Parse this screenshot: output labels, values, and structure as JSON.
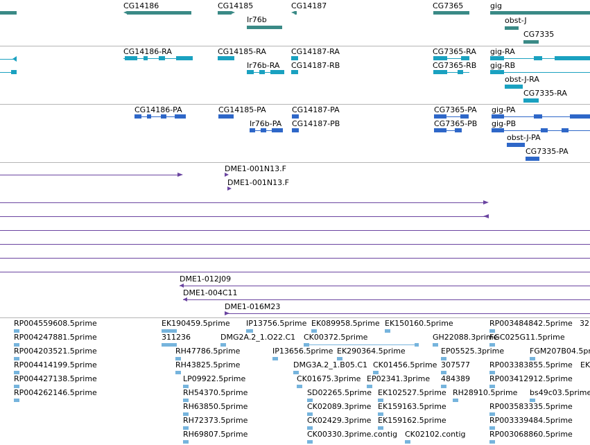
{
  "colors": {
    "gene": "#3a8a86",
    "transcript": "#1aa1c0",
    "protein": "#2e67c8",
    "clone": "#6a44a0",
    "est": "#76b4dd",
    "divider": "#b4b4b4"
  },
  "genes": [
    "CG14186",
    "CG14185",
    "CG14187",
    "CG7365",
    "gig",
    "Ir76b",
    "obst-J",
    "CG7335"
  ],
  "transcripts": [
    "CG14186-RA",
    "CG14185-RA",
    "CG14187-RA",
    "CG7365-RA",
    "gig-RA",
    "Ir76b-RA",
    "CG14187-RB",
    "CG7365-RB",
    "gig-RB",
    "obst-J-RA",
    "CG7335-RA"
  ],
  "proteins": [
    "CG14186-PA",
    "CG14185-PA",
    "CG14187-PA",
    "CG7365-PA",
    "gig-PA",
    "Ir76b-PA",
    "CG14187-PB",
    "CG7365-PB",
    "gig-PB",
    "obst-J-PA",
    "CG7335-PA"
  ],
  "clones": [
    "DME1-001N13.F",
    "DME1-001N13.F",
    "DME1-012J09",
    "DME1-004C11",
    "DME1-016M23"
  ],
  "ests": [
    "RP004559608.5prime",
    "RP004247881.5prime",
    "RP004203521.5prime",
    "RP004414199.5prime",
    "RP004427138.5prime",
    "RP004262146.5prime",
    "EK190459.5prime",
    "311236",
    "RH47786.5prime",
    "RH43825.5prime",
    "LP09922.5prime",
    "RH54370.5prime",
    "RH63850.5prime",
    "RH72373.5prime",
    "RH69807.5prime",
    "IP13756.5prime",
    "DMG2A.2_1.O22.C1",
    "IP13656.5prime",
    "DMG3A.2_1.B05.C1",
    "CK01675.3prime",
    "SD02265.5prime",
    "CK02089.3prime",
    "CK02429.3prime",
    "CK00330.3prime.contig",
    "EK089958.5prime",
    "CK00372.5prime",
    "EK290364.5prime",
    "CK01456.5prime",
    "EP02341.3prime",
    "EK102527.5prime",
    "EK159163.5prime",
    "EK159162.5prime",
    "CK02102.contig",
    "EK150160.5prime",
    "GH22088.3prime",
    "EP05525.3prime",
    "307577",
    "484389",
    "RH28910.5prime",
    "RP003484842.5prime",
    "32",
    "FGC025G11.5prime",
    "FGM207B04.5prime",
    "RP003383855.5prime",
    "EK",
    "RP003412912.5prime",
    "bs49c03.5prime",
    "RP003583335.5prime",
    "RP003339484.5prime",
    "RP003068860.5prime"
  ]
}
